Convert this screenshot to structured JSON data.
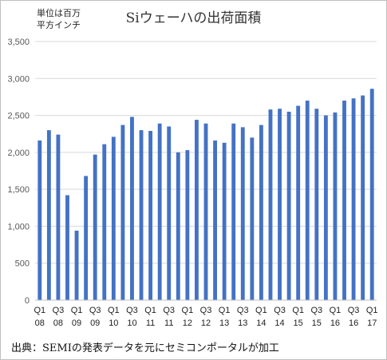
{
  "chart_data": {
    "type": "bar",
    "title": "Siウェーハの出荷面積",
    "unit_label": [
      "単位は百万",
      "平方インチ"
    ],
    "source": "出典：SEMIの発表データを元にセミコンポータルが加工",
    "ylim": [
      0,
      3500
    ],
    "yticks": [
      0,
      500,
      1000,
      1500,
      2000,
      2500,
      3000,
      3500
    ],
    "ytick_labels": [
      "0",
      "500",
      "1,000",
      "1,500",
      "2,000",
      "2,500",
      "3,000",
      "3,500"
    ],
    "grid": true,
    "bar_color": "#4472c4",
    "categories": [
      "Q1 2008",
      "Q2 2008",
      "Q3 2008",
      "Q4 2008",
      "Q1 2009",
      "Q2 2009",
      "Q3 2009",
      "Q4 2009",
      "Q1 2010",
      "Q2 2010",
      "Q3 2010",
      "Q4 2010",
      "Q1 2011",
      "Q2 2011",
      "Q3 2011",
      "Q4 2011",
      "Q1 2012",
      "Q2 2012",
      "Q3 2012",
      "Q4 2012",
      "Q1 2013",
      "Q2 2013",
      "Q3 2013",
      "Q4 2013",
      "Q1 2014",
      "Q2 2014",
      "Q3 2014",
      "Q4 2014",
      "Q1 2015",
      "Q2 2015",
      "Q3 2015",
      "Q4 2015",
      "Q1 2016",
      "Q2 2016",
      "Q3 2016",
      "Q4 2016",
      "Q1 2017"
    ],
    "values": [
      2160,
      2300,
      2240,
      1420,
      940,
      1680,
      1970,
      2110,
      2210,
      2370,
      2480,
      2300,
      2290,
      2390,
      2350,
      2000,
      2030,
      2440,
      2390,
      2160,
      2130,
      2390,
      2340,
      2200,
      2370,
      2580,
      2590,
      2550,
      2630,
      2700,
      2590,
      2500,
      2540,
      2700,
      2730,
      2770,
      2860
    ],
    "x_tick_labels": [
      {
        "q": "Q1",
        "y": "08"
      },
      {
        "q": "Q3",
        "y": "08"
      },
      {
        "q": "Q1",
        "y": "09"
      },
      {
        "q": "Q3",
        "y": "09"
      },
      {
        "q": "Q1",
        "y": "10"
      },
      {
        "q": "Q3",
        "y": "10"
      },
      {
        "q": "Q1",
        "y": "11"
      },
      {
        "q": "Q3",
        "y": "11"
      },
      {
        "q": "Q1",
        "y": "12"
      },
      {
        "q": "Q3",
        "y": "12"
      },
      {
        "q": "Q1",
        "y": "13"
      },
      {
        "q": "Q3",
        "y": "13"
      },
      {
        "q": "Q1",
        "y": "14"
      },
      {
        "q": "Q3",
        "y": "14"
      },
      {
        "q": "Q1",
        "y": "15"
      },
      {
        "q": "Q3",
        "y": "15"
      },
      {
        "q": "Q1",
        "y": "16"
      },
      {
        "q": "Q3",
        "y": "16"
      },
      {
        "q": "Q1",
        "y": "17"
      }
    ]
  }
}
